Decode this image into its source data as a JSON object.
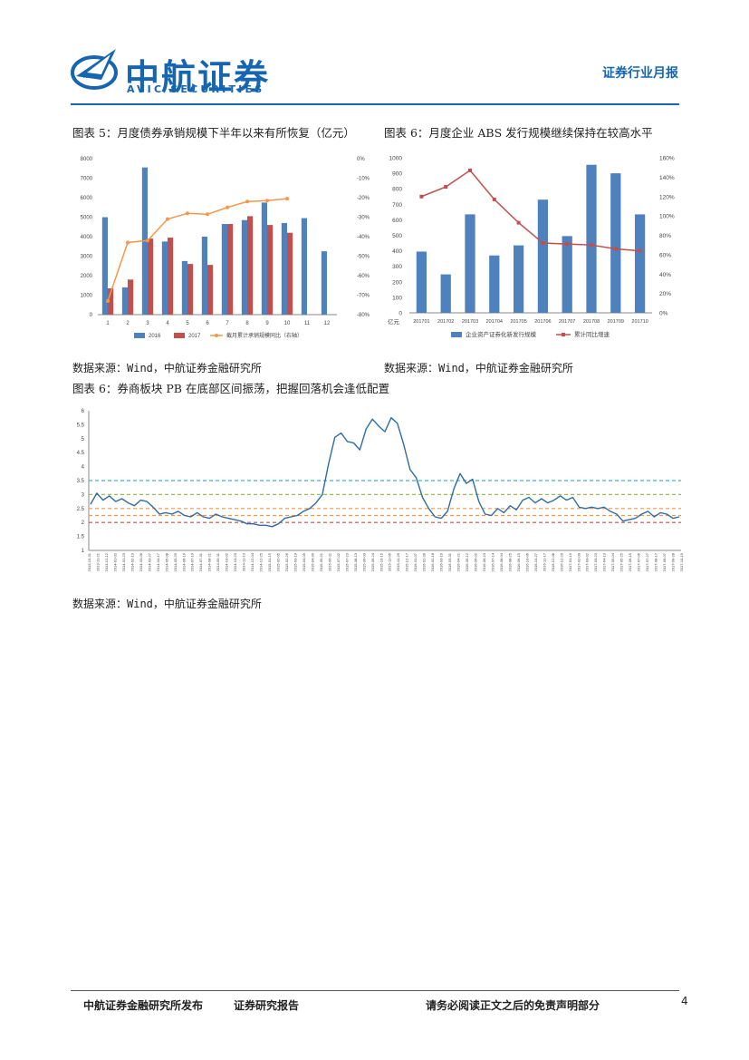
{
  "header": {
    "brand_cn": "中航证券",
    "brand_en": "AVIC SECURITIES",
    "logo_text": "AVIC",
    "report_type": "证券行业月报"
  },
  "figures": {
    "fig5_caption": "图表 5：月度债券承销规模下半年以来有所恢复（亿元）",
    "fig6_caption": "图表 6：月度企业 ABS 发行规模继续保持在较高水平",
    "fig7_caption": "图表 6：券商板块 PB 在底部区间振荡，把握回落机会逢低配置",
    "fig5_source": "数据来源：Wind，中航证券金融研究所",
    "fig6_source": "数据来源：Wind，中航证券金融研究所",
    "fig7_source": "数据来源：Wind，中航证券金融研究所"
  },
  "footer": {
    "publisher": "中航证券金融研究所发布",
    "report_kind": "证券研究报告",
    "disclaimer": "请务必阅读正文之后的免责声明部分",
    "page_number": "4"
  },
  "colors": {
    "brand": "#1565b0",
    "bar_blue": "#4f81bd",
    "bar_red": "#c0504d",
    "line_orange": "#f79646",
    "line_red": "#c0504d",
    "pb_line": "#2e6da4",
    "ref_teal": "#4bacc6",
    "ref_olive": "#9bbb59",
    "ref_orange": "#f79646",
    "ref_red": "#c0504d"
  },
  "chart_data": [
    {
      "id": "fig5",
      "type": "bar",
      "categories": [
        "1",
        "2",
        "3",
        "4",
        "5",
        "6",
        "7",
        "8",
        "9",
        "10",
        "11",
        "12"
      ],
      "series": [
        {
          "name": "2016",
          "type": "bar",
          "values": [
            5000,
            1400,
            7550,
            3750,
            2750,
            4000,
            4650,
            4850,
            5750,
            4700,
            4950,
            3250
          ]
        },
        {
          "name": "2017",
          "type": "bar",
          "values": [
            1350,
            1800,
            3900,
            3950,
            2600,
            2550,
            4650,
            5050,
            4600,
            4200,
            null,
            null
          ]
        },
        {
          "name": "截月累计承销规模同比（右轴）",
          "type": "line",
          "axis": "right",
          "values": [
            -73,
            -43,
            -42,
            -31,
            -28,
            -28.5,
            -25,
            -22,
            -21.5,
            -20.5,
            null,
            null
          ]
        }
      ],
      "ylim": [
        0,
        8000
      ],
      "yticks": [
        "0",
        "1000",
        "2000",
        "3000",
        "4000",
        "5000",
        "6000",
        "7000",
        "8000"
      ],
      "y2lim": [
        -80,
        0
      ],
      "y2ticks": [
        "-80%",
        "-70%",
        "-60%",
        "-50%",
        "-40%",
        "-30%",
        "-20%",
        "-10%",
        "0%"
      ],
      "legend": "bottom"
    },
    {
      "id": "fig6",
      "type": "bar",
      "categories": [
        "201701",
        "201702",
        "201703",
        "201704",
        "201705",
        "201706",
        "201707",
        "201708",
        "201709",
        "201710"
      ],
      "series": [
        {
          "name": "企业资产证券化新发行规模",
          "type": "bar",
          "values": [
            395,
            248,
            635,
            370,
            435,
            730,
            495,
            955,
            900,
            635
          ]
        },
        {
          "name": "累计同比增速",
          "type": "line",
          "axis": "right",
          "values": [
            120,
            130,
            147,
            117,
            93,
            72,
            71,
            70,
            66,
            64
          ]
        }
      ],
      "ylabel": "亿元",
      "ylim": [
        0,
        1000
      ],
      "yticks": [
        "0",
        "100",
        "200",
        "300",
        "400",
        "500",
        "600",
        "700",
        "800",
        "900",
        "1000"
      ],
      "y2lim": [
        0,
        160
      ],
      "y2ticks": [
        "0%",
        "20%",
        "40%",
        "60%",
        "80%",
        "100%",
        "120%",
        "140%",
        "160%"
      ],
      "legend": "bottom"
    },
    {
      "id": "fig7",
      "type": "line",
      "ylim": [
        1,
        6
      ],
      "yticks": [
        "1",
        "1.5",
        "2",
        "2.5",
        "3",
        "3.5",
        "4",
        "4.5",
        "5",
        "5.5",
        "6"
      ],
      "reference_lines": [
        3.5,
        3.0,
        2.5,
        2.25,
        2.0
      ],
      "x_start": "2013-10-31",
      "x_end": "2017-10-31",
      "x_ticks": [
        "2013-10-31",
        "2013-11-21",
        "2013-12-12",
        "2014-01-02",
        "2014-01-23",
        "2014-02-13",
        "2014-03-06",
        "2014-03-27",
        "2014-04-17",
        "2014-05-08",
        "2014-05-29",
        "2014-06-19",
        "2014-07-10",
        "2014-07-31",
        "2014-08-21",
        "2014-09-11",
        "2014-10-02",
        "2014-10-23",
        "2014-11-13",
        "2014-12-04",
        "2014-12-25",
        "2015-01-15",
        "2015-02-05",
        "2015-02-26",
        "2015-03-19",
        "2015-04-09",
        "2015-04-30",
        "2015-05-21",
        "2015-06-11",
        "2015-07-02",
        "2015-07-23",
        "2015-08-13",
        "2015-09-03",
        "2015-09-24",
        "2015-10-15",
        "2015-11-05",
        "2015-11-26",
        "2015-12-17",
        "2016-01-07",
        "2016-01-28",
        "2016-02-18",
        "2016-03-10",
        "2016-03-31",
        "2016-04-21",
        "2016-05-12",
        "2016-06-02",
        "2016-06-23",
        "2016-07-14",
        "2016-08-04",
        "2016-08-25",
        "2016-09-15",
        "2016-10-06",
        "2016-10-27",
        "2016-11-17",
        "2016-12-08",
        "2016-12-29",
        "2017-01-19",
        "2017-02-09",
        "2017-03-02",
        "2017-03-23",
        "2017-04-13",
        "2017-05-04",
        "2017-05-25",
        "2017-06-15",
        "2017-07-06",
        "2017-07-27",
        "2017-08-17",
        "2017-09-07",
        "2017-09-28",
        "2017-10-19"
      ],
      "values": [
        2.65,
        3.05,
        2.8,
        2.95,
        2.75,
        2.85,
        2.7,
        2.6,
        2.8,
        2.75,
        2.55,
        2.3,
        2.35,
        2.3,
        2.4,
        2.25,
        2.2,
        2.35,
        2.2,
        2.15,
        2.3,
        2.2,
        2.15,
        2.1,
        2.05,
        1.95,
        1.95,
        1.9,
        1.9,
        1.85,
        1.95,
        2.15,
        2.2,
        2.25,
        2.4,
        2.5,
        2.7,
        3.0,
        4.1,
        5.05,
        5.2,
        4.9,
        4.85,
        4.6,
        5.35,
        5.7,
        5.45,
        5.25,
        5.75,
        5.55,
        4.8,
        3.9,
        3.6,
        2.9,
        2.5,
        2.2,
        2.15,
        2.4,
        3.2,
        3.75,
        3.4,
        3.55,
        2.75,
        2.3,
        2.25,
        2.5,
        2.35,
        2.6,
        2.45,
        2.8,
        2.9,
        2.7,
        2.85,
        2.7,
        2.8,
        2.95,
        2.8,
        2.9,
        2.55,
        2.5,
        2.55,
        2.5,
        2.55,
        2.4,
        2.3,
        2.05,
        2.1,
        2.15,
        2.3,
        2.4,
        2.2,
        2.35,
        2.3,
        2.15,
        2.2
      ]
    }
  ]
}
